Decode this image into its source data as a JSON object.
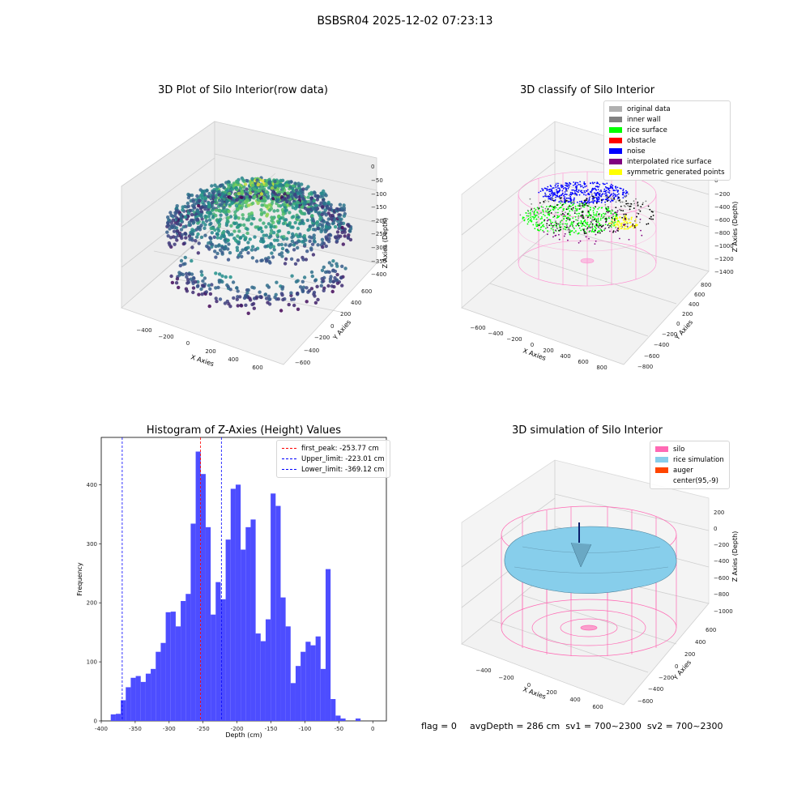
{
  "figure": {
    "suptitle": "BSBSR04 2025-12-02 07:23:13",
    "status_flag": "flag = 0",
    "status_rest": "avgDepth = 286 cm  sv1 = 700~2300  sv2 = 700~2300"
  },
  "chart_data": [
    {
      "type": "scatter",
      "title": "3D Plot of Silo Interior(row data)",
      "xlabel": "X Axies",
      "ylabel": "Y Axies",
      "zlabel": "Z Axies (Depth)",
      "xticks": [
        "−400",
        "−200",
        "0",
        "200",
        "400",
        "600"
      ],
      "yticks": [
        "−600",
        "−400",
        "−200",
        "0",
        "200",
        "400",
        "600"
      ],
      "zticks": [
        "0",
        "−50",
        "−100",
        "−150",
        "−200",
        "−250",
        "−300",
        "−350",
        "−400"
      ],
      "colormap": "viridis"
    },
    {
      "type": "scatter",
      "title": "3D classify of Silo Interior",
      "xlabel": "X Axies",
      "ylabel": "Y Axies",
      "zlabel": "Z Axies (Depth)",
      "xticks": [
        "−600",
        "−400",
        "−200",
        "0",
        "200",
        "400",
        "600",
        "800"
      ],
      "yticks": [
        "−800",
        "−600",
        "−400",
        "−200",
        "0",
        "200",
        "400",
        "600",
        "800"
      ],
      "zticks": [
        "0",
        "−200",
        "−400",
        "−600",
        "−800",
        "−1000",
        "−1200",
        "−1400"
      ],
      "legend": [
        {
          "label": "original data",
          "color": "#b0b0b0"
        },
        {
          "label": "inner wall",
          "color": "#808080"
        },
        {
          "label": "rice surface",
          "color": "#00ff00"
        },
        {
          "label": "obstacle",
          "color": "#ff0000"
        },
        {
          "label": "noise",
          "color": "#0000ff"
        },
        {
          "label": "interpolated rice surface",
          "color": "#800080"
        },
        {
          "label": "symmetric generated points",
          "color": "#ffff00"
        }
      ]
    },
    {
      "type": "bar",
      "title": "Histogram of Z-Axies (Height) Values",
      "xlabel": "Depth (cm)",
      "ylabel": "Frequency",
      "xlim": [
        -400,
        20
      ],
      "ylim": [
        0,
        480
      ],
      "xticks": [
        -400,
        -350,
        -300,
        -250,
        -200,
        -150,
        -100,
        -50,
        0
      ],
      "yticks": [
        0,
        100,
        200,
        300,
        400
      ],
      "bin_width": 7.36,
      "bin_start": -386,
      "bar_color": "#4d4dff",
      "values": [
        11,
        12,
        35,
        57,
        73,
        76,
        66,
        80,
        88,
        117,
        132,
        184,
        185,
        160,
        203,
        215,
        334,
        456,
        418,
        328,
        180,
        235,
        206,
        307,
        393,
        400,
        290,
        328,
        341,
        148,
        135,
        172,
        385,
        364,
        209,
        160,
        64,
        93,
        117,
        134,
        128,
        143,
        88,
        257,
        37,
        9,
        4,
        0,
        0,
        4
      ],
      "lines": [
        {
          "label": "first_peak: -253.77 cm",
          "x": -253.77,
          "color": "#ff0000"
        },
        {
          "label": "Upper_limit: -223.01 cm",
          "x": -223.01,
          "color": "#0000ff"
        },
        {
          "label": "Lower_limit: -369.12 cm",
          "x": -369.12,
          "color": "#0000ff"
        }
      ]
    },
    {
      "type": "surface",
      "title": "3D simulation of Silo Interior",
      "xlabel": "X Axies",
      "ylabel": "Y Axies",
      "zlabel": "Z Axies (Depth)",
      "xticks": [
        "−400",
        "−200",
        "0",
        "200",
        "400",
        "600"
      ],
      "yticks": [
        "−600",
        "−400",
        "−200",
        "0",
        "200",
        "400",
        "600"
      ],
      "zticks": [
        "200",
        "0",
        "−200",
        "−400",
        "−600",
        "−800",
        "−1000"
      ],
      "legend": [
        {
          "label": "silo",
          "color": "#ff69b4"
        },
        {
          "label": "rice simulation",
          "color": "#87ceeb"
        },
        {
          "label": "auger",
          "color": "#ff4500"
        },
        {
          "label": "center(95,-9)",
          "color": "#ffffff"
        }
      ]
    }
  ]
}
